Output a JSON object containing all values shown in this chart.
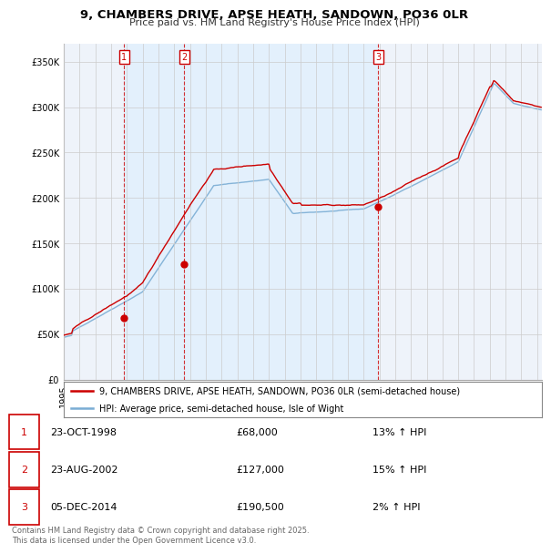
{
  "title": "9, CHAMBERS DRIVE, APSE HEATH, SANDOWN, PO36 0LR",
  "subtitle": "Price paid vs. HM Land Registry's House Price Index (HPI)",
  "legend_line1": "9, CHAMBERS DRIVE, APSE HEATH, SANDOWN, PO36 0LR (semi-detached house)",
  "legend_line2": "HPI: Average price, semi-detached house, Isle of Wight",
  "footer": "Contains HM Land Registry data © Crown copyright and database right 2025.\nThis data is licensed under the Open Government Licence v3.0.",
  "transactions": [
    {
      "num": 1,
      "date": "23-OCT-1998",
      "price": 68000,
      "hpi_pct": "13% ↑ HPI",
      "year": 1998.81
    },
    {
      "num": 2,
      "date": "23-AUG-2002",
      "price": 127000,
      "hpi_pct": "15% ↑ HPI",
      "year": 2002.64
    },
    {
      "num": 3,
      "date": "05-DEC-2014",
      "price": 190500,
      "hpi_pct": "2% ↑ HPI",
      "year": 2014.92
    }
  ],
  "hpi_color": "#7aadd4",
  "price_color": "#cc0000",
  "shade_color": "#ddeeff",
  "background_color": "#ffffff",
  "chart_bg": "#eef3fa",
  "grid_color": "#cccccc",
  "ylim": [
    0,
    370000
  ],
  "yticks": [
    0,
    50000,
    100000,
    150000,
    200000,
    250000,
    300000,
    350000
  ],
  "xmin": 1995.0,
  "xmax": 2025.3,
  "noise_seed": 42,
  "hpi_noise_scale": 800,
  "price_noise_scale": 1200
}
